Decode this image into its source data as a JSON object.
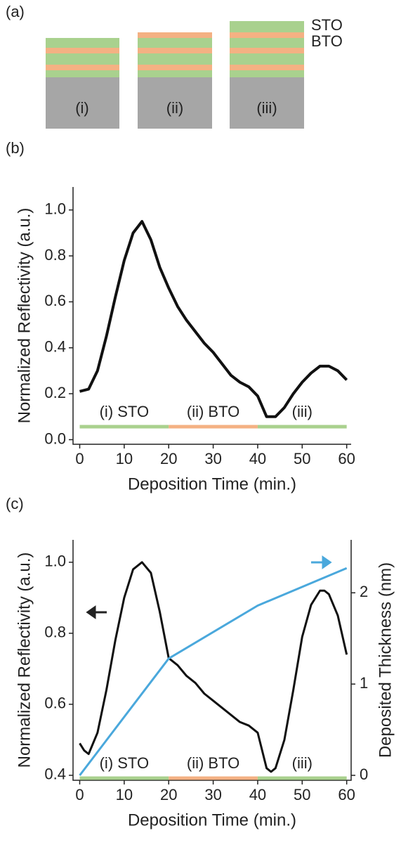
{
  "panel_labels": [
    "(a)",
    "(b)",
    "(c)"
  ],
  "diagram": {
    "stacks": [
      "(i)",
      "(ii)",
      "(iii)"
    ],
    "legend": [
      "STO",
      "BTO"
    ]
  },
  "chart_data": [
    {
      "type": "line",
      "xlabel": "Deposition Time (min.)",
      "ylabel": "Normalized Reflectivity (a.u.)",
      "xlim": [
        -1.5,
        61
      ],
      "ylim": [
        -0.02,
        1.1
      ],
      "xticks": [
        0,
        10,
        20,
        30,
        40,
        50,
        60
      ],
      "yticks": [
        {
          "value": 0,
          "label": "0.0"
        },
        0.2,
        0.4,
        0.6,
        0.8,
        {
          "value": 1,
          "label": "1.0"
        }
      ],
      "segments": [
        {
          "label": "(i) STO",
          "start": 0,
          "end": 20,
          "color": "#a9d18e"
        },
        {
          "label": "(ii) BTO",
          "start": 20,
          "end": 40,
          "color": "#f4b183"
        },
        {
          "label": "(iii)",
          "start": 40,
          "end": 60,
          "color": "#a9d18e"
        }
      ],
      "series": [
        {
          "color": "#111111",
          "x": [
            0,
            2,
            4,
            6,
            8,
            10,
            12,
            14,
            16,
            18,
            20,
            22,
            24,
            26,
            28,
            30,
            32,
            34,
            36,
            38,
            40,
            42,
            44,
            46,
            48,
            50,
            52,
            54,
            56,
            58,
            60
          ],
          "values": [
            0.21,
            0.22,
            0.3,
            0.45,
            0.62,
            0.78,
            0.9,
            0.95,
            0.87,
            0.75,
            0.66,
            0.58,
            0.52,
            0.47,
            0.42,
            0.38,
            0.33,
            0.28,
            0.25,
            0.23,
            0.19,
            0.1,
            0.1,
            0.14,
            0.2,
            0.25,
            0.29,
            0.32,
            0.32,
            0.3,
            0.26
          ]
        }
      ]
    },
    {
      "type": "line",
      "xlabel": "Deposition Time (min.)",
      "ylabel": "Normalized Reflectivity (a.u.)",
      "y2label": "Deposited Thickness (nm)",
      "xlim": [
        -1.5,
        61
      ],
      "ylim": [
        0.386,
        1.063
      ],
      "y2lim": [
        -0.054,
        2.58
      ],
      "xticks": [
        0,
        10,
        20,
        30,
        40,
        50,
        60
      ],
      "yticks": [
        0.4,
        0.6,
        0.8,
        {
          "value": 1,
          "label": "1.0"
        }
      ],
      "y2ticks": [
        0,
        1,
        2
      ],
      "segments": [
        {
          "label": "(i) STO",
          "start": 0,
          "end": 20,
          "color": "#a9d18e"
        },
        {
          "label": "(ii) BTO",
          "start": 20,
          "end": 40,
          "color": "#f4b183"
        },
        {
          "label": "(iii)",
          "start": 40,
          "end": 60,
          "color": "#a9d18e"
        }
      ],
      "series": [
        {
          "color": "#111111",
          "x": [
            0,
            1,
            2,
            4,
            6,
            8,
            10,
            12,
            14,
            16,
            18,
            20,
            22,
            24,
            26,
            28,
            30,
            32,
            34,
            36,
            38,
            40,
            42,
            43,
            44,
            46,
            48,
            50,
            52,
            54,
            55,
            56,
            58,
            60
          ],
          "values": [
            0.49,
            0.47,
            0.46,
            0.52,
            0.64,
            0.78,
            0.9,
            0.98,
            1.0,
            0.97,
            0.86,
            0.73,
            0.71,
            0.68,
            0.66,
            0.63,
            0.61,
            0.59,
            0.57,
            0.55,
            0.54,
            0.52,
            0.42,
            0.41,
            0.42,
            0.5,
            0.64,
            0.79,
            0.88,
            0.92,
            0.92,
            0.91,
            0.85,
            0.74
          ]
        },
        {
          "color": "#4aa8dc",
          "axis": "y2",
          "x": [
            0,
            20,
            40,
            60
          ],
          "values": [
            0,
            1.28,
            1.86,
            2.27
          ]
        }
      ]
    }
  ]
}
